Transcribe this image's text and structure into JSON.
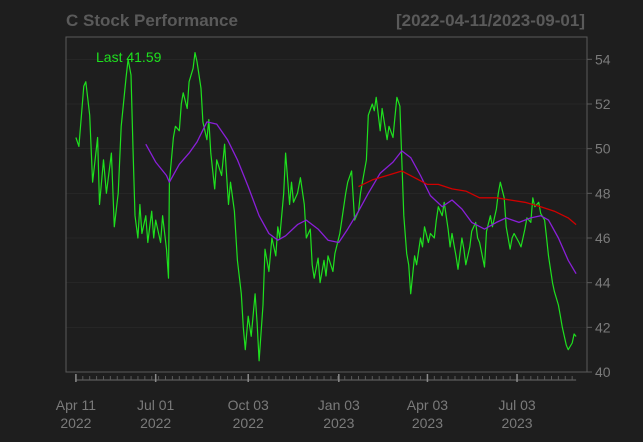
{
  "chart_data": {
    "type": "line",
    "title": "C Stock Performance",
    "date_range": "[2022-04-11/2023-09-01]",
    "last_label": "Last 41.59",
    "ylim": [
      40,
      55
    ],
    "y_ticks": [
      40,
      42,
      44,
      46,
      48,
      50,
      52,
      54
    ],
    "x_ticks": [
      {
        "date": "2022-04-11",
        "label": "Apr 11",
        "year": "2022"
      },
      {
        "date": "2022-07-01",
        "label": "Jul 01",
        "year": "2022"
      },
      {
        "date": "2022-10-03",
        "label": "Oct 03",
        "year": "2022"
      },
      {
        "date": "2023-01-03",
        "label": "Jan 03",
        "year": "2023"
      },
      {
        "date": "2023-04-03",
        "label": "Apr 03",
        "year": "2023"
      },
      {
        "date": "2023-07-03",
        "label": "Jul 03",
        "year": "2023"
      }
    ],
    "x_range": [
      "2022-04-05",
      "2023-09-08"
    ],
    "grid": true,
    "colors": {
      "background": "#1e1e1e",
      "price": "#1ee01e",
      "ma_short": "#8a1fd8",
      "ma_long": "#d00000",
      "axis": "#6a6a6a",
      "text": "#7a7a7a"
    },
    "series": [
      {
        "role": "price",
        "points": [
          [
            "2022-04-11",
            50.5
          ],
          [
            "2022-04-14",
            50.1
          ],
          [
            "2022-04-19",
            52.8
          ],
          [
            "2022-04-21",
            53.0
          ],
          [
            "2022-04-25",
            51.5
          ],
          [
            "2022-04-28",
            48.5
          ],
          [
            "2022-05-03",
            50.5
          ],
          [
            "2022-05-05",
            47.5
          ],
          [
            "2022-05-09",
            49.5
          ],
          [
            "2022-05-12",
            48.0
          ],
          [
            "2022-05-17",
            49.8
          ],
          [
            "2022-05-20",
            46.5
          ],
          [
            "2022-05-24",
            48.0
          ],
          [
            "2022-05-27",
            51.0
          ],
          [
            "2022-06-01",
            53.2
          ],
          [
            "2022-06-03",
            54.0
          ],
          [
            "2022-06-06",
            53.3
          ],
          [
            "2022-06-08",
            50.0
          ],
          [
            "2022-06-10",
            47.0
          ],
          [
            "2022-06-13",
            46.0
          ],
          [
            "2022-06-15",
            47.5
          ],
          [
            "2022-06-17",
            46.2
          ],
          [
            "2022-06-21",
            47.0
          ],
          [
            "2022-06-23",
            45.8
          ],
          [
            "2022-06-27",
            47.2
          ],
          [
            "2022-06-29",
            46.0
          ],
          [
            "2022-07-01",
            46.8
          ],
          [
            "2022-07-06",
            45.8
          ],
          [
            "2022-07-08",
            47.0
          ],
          [
            "2022-07-12",
            45.5
          ],
          [
            "2022-07-14",
            44.2
          ],
          [
            "2022-07-15",
            48.5
          ],
          [
            "2022-07-19",
            50.5
          ],
          [
            "2022-07-21",
            51.0
          ],
          [
            "2022-07-25",
            50.8
          ],
          [
            "2022-07-27",
            52.0
          ],
          [
            "2022-07-29",
            52.5
          ],
          [
            "2022-08-02",
            51.8
          ],
          [
            "2022-08-04",
            53.0
          ],
          [
            "2022-08-08",
            53.6
          ],
          [
            "2022-08-10",
            54.3
          ],
          [
            "2022-08-12",
            53.9
          ],
          [
            "2022-08-16",
            52.7
          ],
          [
            "2022-08-18",
            51.2
          ],
          [
            "2022-08-22",
            50.4
          ],
          [
            "2022-08-24",
            51.3
          ],
          [
            "2022-08-26",
            49.8
          ],
          [
            "2022-08-30",
            48.2
          ],
          [
            "2022-09-01",
            49.5
          ],
          [
            "2022-09-06",
            48.8
          ],
          [
            "2022-09-09",
            50.2
          ],
          [
            "2022-09-13",
            47.5
          ],
          [
            "2022-09-15",
            48.5
          ],
          [
            "2022-09-19",
            47.2
          ],
          [
            "2022-09-22",
            45.0
          ],
          [
            "2022-09-26",
            43.5
          ],
          [
            "2022-09-28",
            42.0
          ],
          [
            "2022-09-30",
            41.0
          ],
          [
            "2022-10-03",
            42.5
          ],
          [
            "2022-10-06",
            41.6
          ],
          [
            "2022-10-10",
            43.5
          ],
          [
            "2022-10-12",
            42.2
          ],
          [
            "2022-10-14",
            40.5
          ],
          [
            "2022-10-18",
            43.0
          ],
          [
            "2022-10-20",
            45.5
          ],
          [
            "2022-10-24",
            44.5
          ],
          [
            "2022-10-27",
            46.0
          ],
          [
            "2022-10-31",
            45.2
          ],
          [
            "2022-11-02",
            46.5
          ],
          [
            "2022-11-04",
            46.0
          ],
          [
            "2022-11-08",
            48.0
          ],
          [
            "2022-11-10",
            49.8
          ],
          [
            "2022-11-14",
            47.5
          ],
          [
            "2022-11-16",
            48.5
          ],
          [
            "2022-11-18",
            47.6
          ],
          [
            "2022-11-22",
            48.0
          ],
          [
            "2022-11-25",
            48.7
          ],
          [
            "2022-11-29",
            47.5
          ],
          [
            "2022-12-01",
            46.0
          ],
          [
            "2022-12-05",
            46.4
          ],
          [
            "2022-12-07",
            44.8
          ],
          [
            "2022-12-09",
            44.2
          ],
          [
            "2022-12-13",
            45.1
          ],
          [
            "2022-12-15",
            44.0
          ],
          [
            "2022-12-19",
            45.0
          ],
          [
            "2022-12-21",
            44.3
          ],
          [
            "2022-12-23",
            45.2
          ],
          [
            "2022-12-28",
            44.5
          ],
          [
            "2022-12-30",
            45.3
          ],
          [
            "2023-01-04",
            46.2
          ],
          [
            "2023-01-06",
            46.8
          ],
          [
            "2023-01-10",
            48.0
          ],
          [
            "2023-01-12",
            48.5
          ],
          [
            "2023-01-16",
            49.0
          ],
          [
            "2023-01-19",
            46.8
          ],
          [
            "2023-01-23",
            47.2
          ],
          [
            "2023-01-25",
            48.0
          ],
          [
            "2023-01-27",
            48.5
          ],
          [
            "2023-01-31",
            49.5
          ],
          [
            "2023-02-02",
            51.5
          ],
          [
            "2023-02-06",
            52.0
          ],
          [
            "2023-02-08",
            51.7
          ],
          [
            "2023-02-10",
            52.3
          ],
          [
            "2023-02-14",
            50.8
          ],
          [
            "2023-02-16",
            51.8
          ],
          [
            "2023-02-21",
            50.4
          ],
          [
            "2023-02-23",
            51.0
          ],
          [
            "2023-02-27",
            50.5
          ],
          [
            "2023-03-01",
            51.4
          ],
          [
            "2023-03-03",
            52.3
          ],
          [
            "2023-03-06",
            51.9
          ],
          [
            "2023-03-08",
            49.5
          ],
          [
            "2023-03-10",
            47.0
          ],
          [
            "2023-03-13",
            45.3
          ],
          [
            "2023-03-15",
            44.8
          ],
          [
            "2023-03-17",
            43.5
          ],
          [
            "2023-03-21",
            45.2
          ],
          [
            "2023-03-23",
            44.8
          ],
          [
            "2023-03-27",
            46.0
          ],
          [
            "2023-03-29",
            45.6
          ],
          [
            "2023-03-31",
            46.5
          ],
          [
            "2023-04-04",
            45.8
          ],
          [
            "2023-04-06",
            46.2
          ],
          [
            "2023-04-10",
            46.0
          ],
          [
            "2023-04-12",
            46.8
          ],
          [
            "2023-04-14",
            47.4
          ],
          [
            "2023-04-18",
            47.0
          ],
          [
            "2023-04-20",
            47.6
          ],
          [
            "2023-04-24",
            46.4
          ],
          [
            "2023-04-26",
            45.6
          ],
          [
            "2023-04-28",
            46.2
          ],
          [
            "2023-05-02",
            45.2
          ],
          [
            "2023-05-04",
            44.6
          ],
          [
            "2023-05-08",
            46.0
          ],
          [
            "2023-05-10",
            45.5
          ],
          [
            "2023-05-12",
            44.8
          ],
          [
            "2023-05-16",
            45.6
          ],
          [
            "2023-05-18",
            46.3
          ],
          [
            "2023-05-22",
            46.7
          ],
          [
            "2023-05-24",
            46.0
          ],
          [
            "2023-05-26",
            45.8
          ],
          [
            "2023-05-31",
            44.7
          ],
          [
            "2023-06-02",
            46.3
          ],
          [
            "2023-06-06",
            47.0
          ],
          [
            "2023-06-08",
            46.5
          ],
          [
            "2023-06-12",
            47.3
          ],
          [
            "2023-06-14",
            48.0
          ],
          [
            "2023-06-16",
            48.5
          ],
          [
            "2023-06-20",
            47.8
          ],
          [
            "2023-06-22",
            46.5
          ],
          [
            "2023-06-26",
            45.5
          ],
          [
            "2023-06-28",
            46.0
          ],
          [
            "2023-06-30",
            46.2
          ],
          [
            "2023-07-05",
            45.8
          ],
          [
            "2023-07-07",
            45.6
          ],
          [
            "2023-07-11",
            46.4
          ],
          [
            "2023-07-13",
            46.9
          ],
          [
            "2023-07-17",
            46.7
          ],
          [
            "2023-07-19",
            47.8
          ],
          [
            "2023-07-21",
            47.4
          ],
          [
            "2023-07-25",
            47.6
          ],
          [
            "2023-07-27",
            47.1
          ],
          [
            "2023-07-31",
            46.8
          ],
          [
            "2023-08-02",
            46.0
          ],
          [
            "2023-08-04",
            45.2
          ],
          [
            "2023-08-08",
            44.0
          ],
          [
            "2023-08-10",
            43.6
          ],
          [
            "2023-08-14",
            43.0
          ],
          [
            "2023-08-16",
            42.5
          ],
          [
            "2023-08-18",
            42.0
          ],
          [
            "2023-08-22",
            41.2
          ],
          [
            "2023-08-24",
            41.0
          ],
          [
            "2023-08-28",
            41.3
          ],
          [
            "2023-08-30",
            41.7
          ],
          [
            "2023-09-01",
            41.59
          ]
        ]
      },
      {
        "role": "ma_short",
        "points": [
          [
            "2022-06-21",
            50.2
          ],
          [
            "2022-07-01",
            49.4
          ],
          [
            "2022-07-12",
            48.8
          ],
          [
            "2022-07-15",
            48.5
          ],
          [
            "2022-07-25",
            49.3
          ],
          [
            "2022-08-04",
            49.8
          ],
          [
            "2022-08-12",
            50.3
          ],
          [
            "2022-08-22",
            51.2
          ],
          [
            "2022-09-01",
            51.1
          ],
          [
            "2022-09-12",
            50.4
          ],
          [
            "2022-09-22",
            49.5
          ],
          [
            "2022-10-03",
            48.3
          ],
          [
            "2022-10-14",
            47.0
          ],
          [
            "2022-10-24",
            46.2
          ],
          [
            "2022-11-02",
            45.9
          ],
          [
            "2022-11-10",
            46.1
          ],
          [
            "2022-11-22",
            46.6
          ],
          [
            "2022-12-01",
            46.8
          ],
          [
            "2022-12-13",
            46.4
          ],
          [
            "2022-12-23",
            45.9
          ],
          [
            "2023-01-03",
            45.8
          ],
          [
            "2023-01-12",
            46.4
          ],
          [
            "2023-01-23",
            47.2
          ],
          [
            "2023-02-02",
            48.0
          ],
          [
            "2023-02-14",
            48.9
          ],
          [
            "2023-02-27",
            49.4
          ],
          [
            "2023-03-08",
            49.9
          ],
          [
            "2023-03-17",
            49.6
          ],
          [
            "2023-03-27",
            48.8
          ],
          [
            "2023-04-06",
            47.9
          ],
          [
            "2023-04-18",
            47.4
          ],
          [
            "2023-04-28",
            47.7
          ],
          [
            "2023-05-08",
            47.3
          ],
          [
            "2023-05-18",
            46.7
          ],
          [
            "2023-05-31",
            46.4
          ],
          [
            "2023-06-12",
            46.7
          ],
          [
            "2023-06-22",
            46.9
          ],
          [
            "2023-07-05",
            46.7
          ],
          [
            "2023-07-17",
            46.9
          ],
          [
            "2023-07-27",
            47.0
          ],
          [
            "2023-08-04",
            46.8
          ],
          [
            "2023-08-14",
            46.0
          ],
          [
            "2023-08-24",
            45.0
          ],
          [
            "2023-09-01",
            44.4
          ]
        ]
      },
      {
        "role": "ma_long",
        "points": [
          [
            "2023-01-23",
            48.3
          ],
          [
            "2023-02-06",
            48.6
          ],
          [
            "2023-02-21",
            48.8
          ],
          [
            "2023-03-08",
            49.0
          ],
          [
            "2023-03-21",
            48.7
          ],
          [
            "2023-04-03",
            48.4
          ],
          [
            "2023-04-14",
            48.4
          ],
          [
            "2023-04-28",
            48.2
          ],
          [
            "2023-05-12",
            48.1
          ],
          [
            "2023-05-26",
            47.8
          ],
          [
            "2023-06-12",
            47.8
          ],
          [
            "2023-06-26",
            47.7
          ],
          [
            "2023-07-11",
            47.6
          ],
          [
            "2023-07-27",
            47.4
          ],
          [
            "2023-08-10",
            47.2
          ],
          [
            "2023-08-24",
            46.9
          ],
          [
            "2023-09-01",
            46.6
          ]
        ]
      }
    ]
  }
}
